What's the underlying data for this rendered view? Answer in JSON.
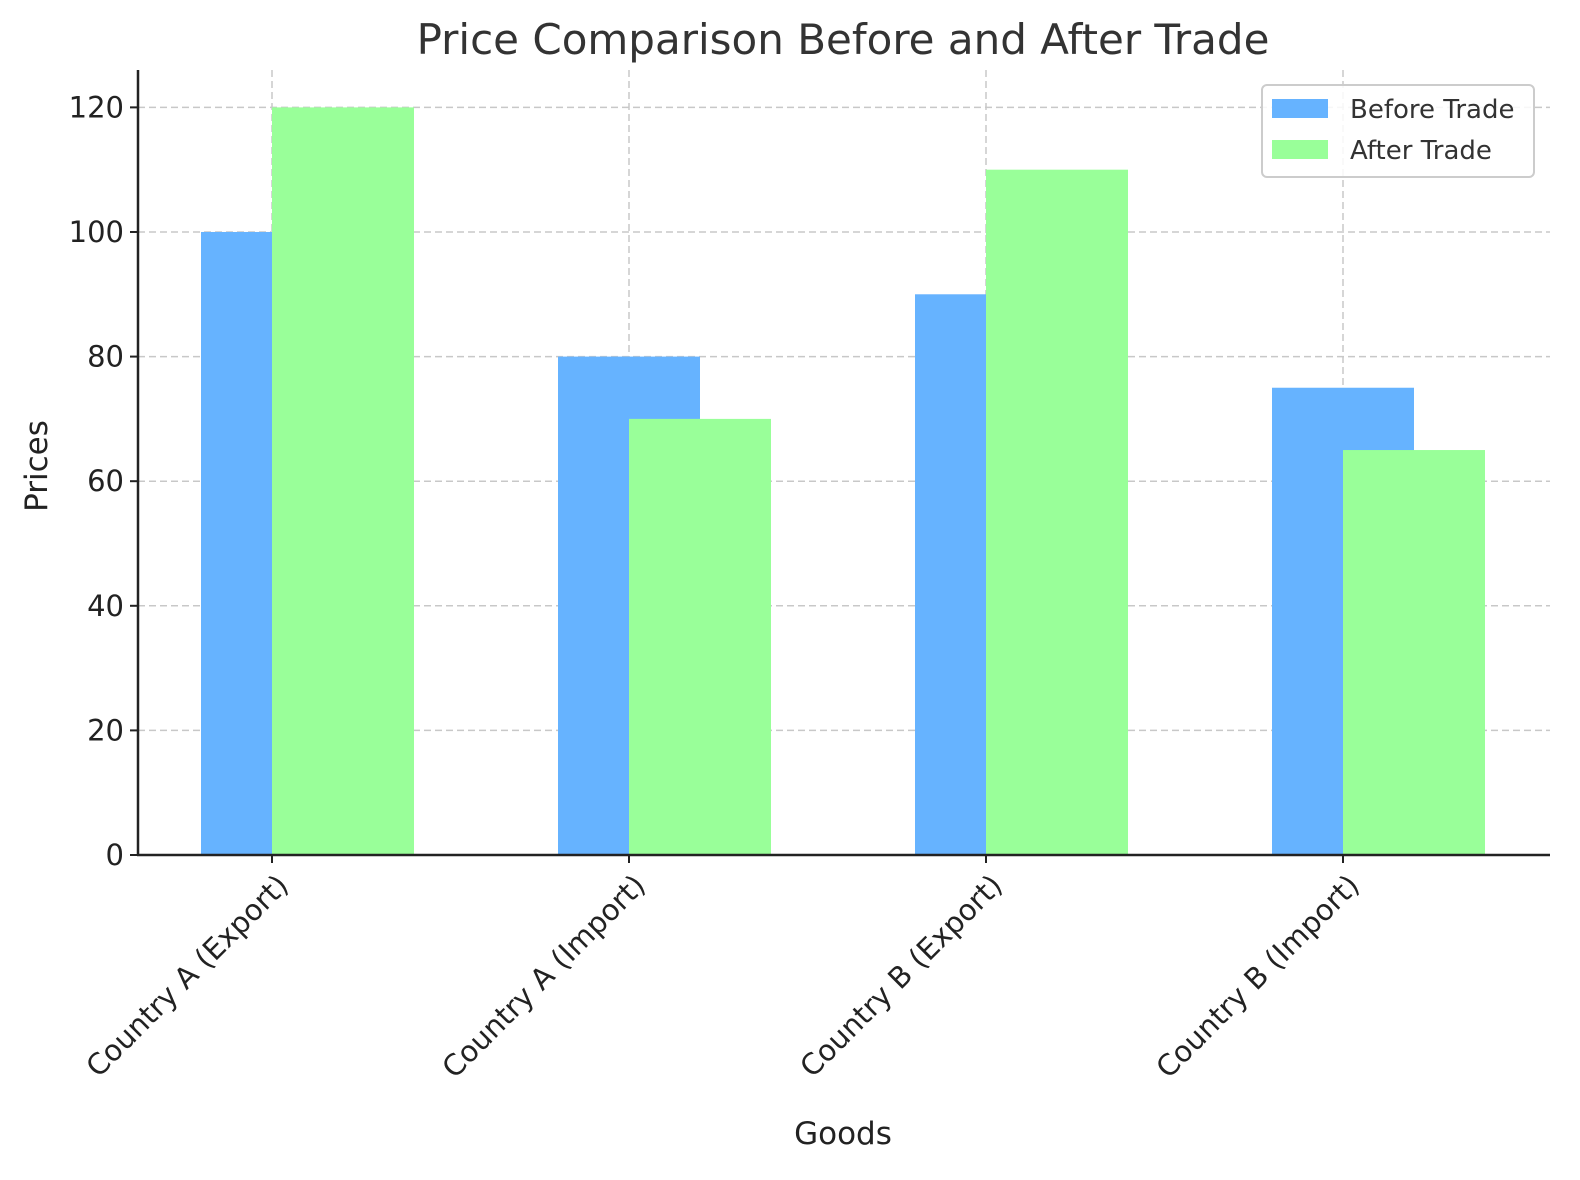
{
  "chart_data": {
    "type": "bar",
    "title": "Price Comparison Before and After Trade",
    "xlabel": "Goods",
    "ylabel": "Prices",
    "categories": [
      "Country A (Export)",
      "Country A (Import)",
      "Country B (Export)",
      "Country B (Import)"
    ],
    "series": [
      {
        "name": "Before Trade",
        "values": [
          100,
          80,
          90,
          75
        ],
        "color": "#66b3ff"
      },
      {
        "name": "After Trade",
        "values": [
          120,
          70,
          110,
          65
        ],
        "color": "#99ff99"
      }
    ],
    "ylim": [
      0,
      126
    ],
    "yticks": [
      0,
      20,
      40,
      60,
      80,
      100,
      120
    ],
    "grid": true,
    "legend_position": "top-right"
  }
}
